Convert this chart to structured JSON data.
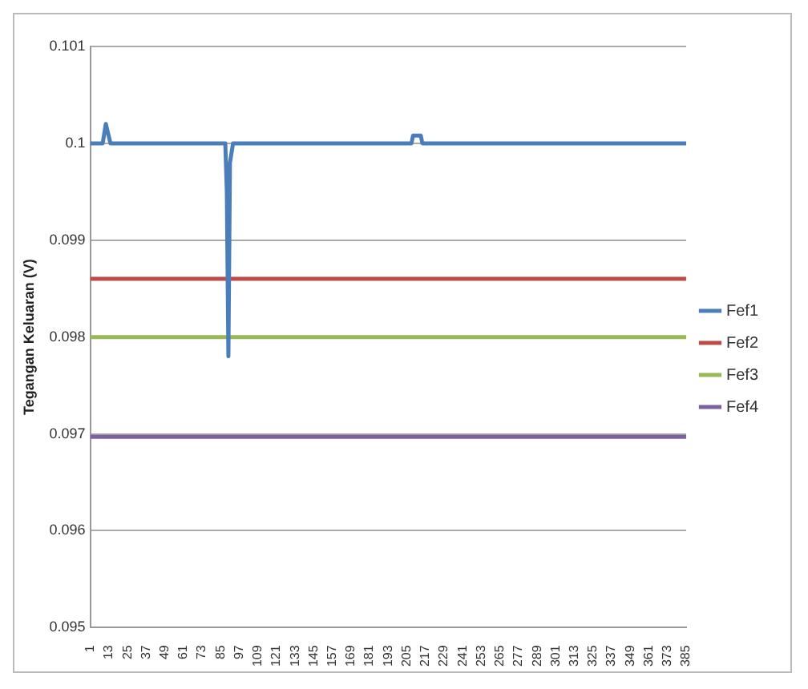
{
  "chart_data": {
    "type": "line",
    "ylabel": "Tegangan Keluaran (V)",
    "xlim": [
      1,
      385
    ],
    "xticks": [
      1,
      13,
      25,
      37,
      49,
      61,
      73,
      85,
      97,
      109,
      121,
      133,
      145,
      157,
      169,
      181,
      193,
      205,
      217,
      229,
      241,
      253,
      265,
      277,
      289,
      301,
      313,
      325,
      337,
      349,
      361,
      373,
      385
    ],
    "ylim": [
      0.095,
      0.101
    ],
    "yticks": [
      0.095,
      0.096,
      0.097,
      0.098,
      0.099,
      0.1,
      0.101
    ],
    "grid": "y",
    "legend": "right",
    "marker": "none",
    "line_style": "solid",
    "series": [
      {
        "name": "Fef1",
        "color": "#4a7ebb",
        "x": [
          1,
          9,
          11,
          14,
          88,
          89,
          90,
          91,
          93,
          208,
          209,
          214,
          215,
          385
        ],
        "values": [
          0.1,
          0.1,
          0.1002,
          0.1,
          0.1,
          0.0995,
          0.0978,
          0.0998,
          0.1,
          0.1,
          0.10008,
          0.10008,
          0.1,
          0.1
        ]
      },
      {
        "name": "Fef2",
        "color": "#be4b48",
        "x": [
          1,
          385
        ],
        "values": [
          0.0986,
          0.0986
        ]
      },
      {
        "name": "Fef3",
        "color": "#98b954",
        "x": [
          1,
          385
        ],
        "values": [
          0.098,
          0.098
        ]
      },
      {
        "name": "Fef4",
        "color": "#7d60a0",
        "x": [
          1,
          385
        ],
        "values": [
          0.09697,
          0.09697
        ]
      }
    ]
  }
}
